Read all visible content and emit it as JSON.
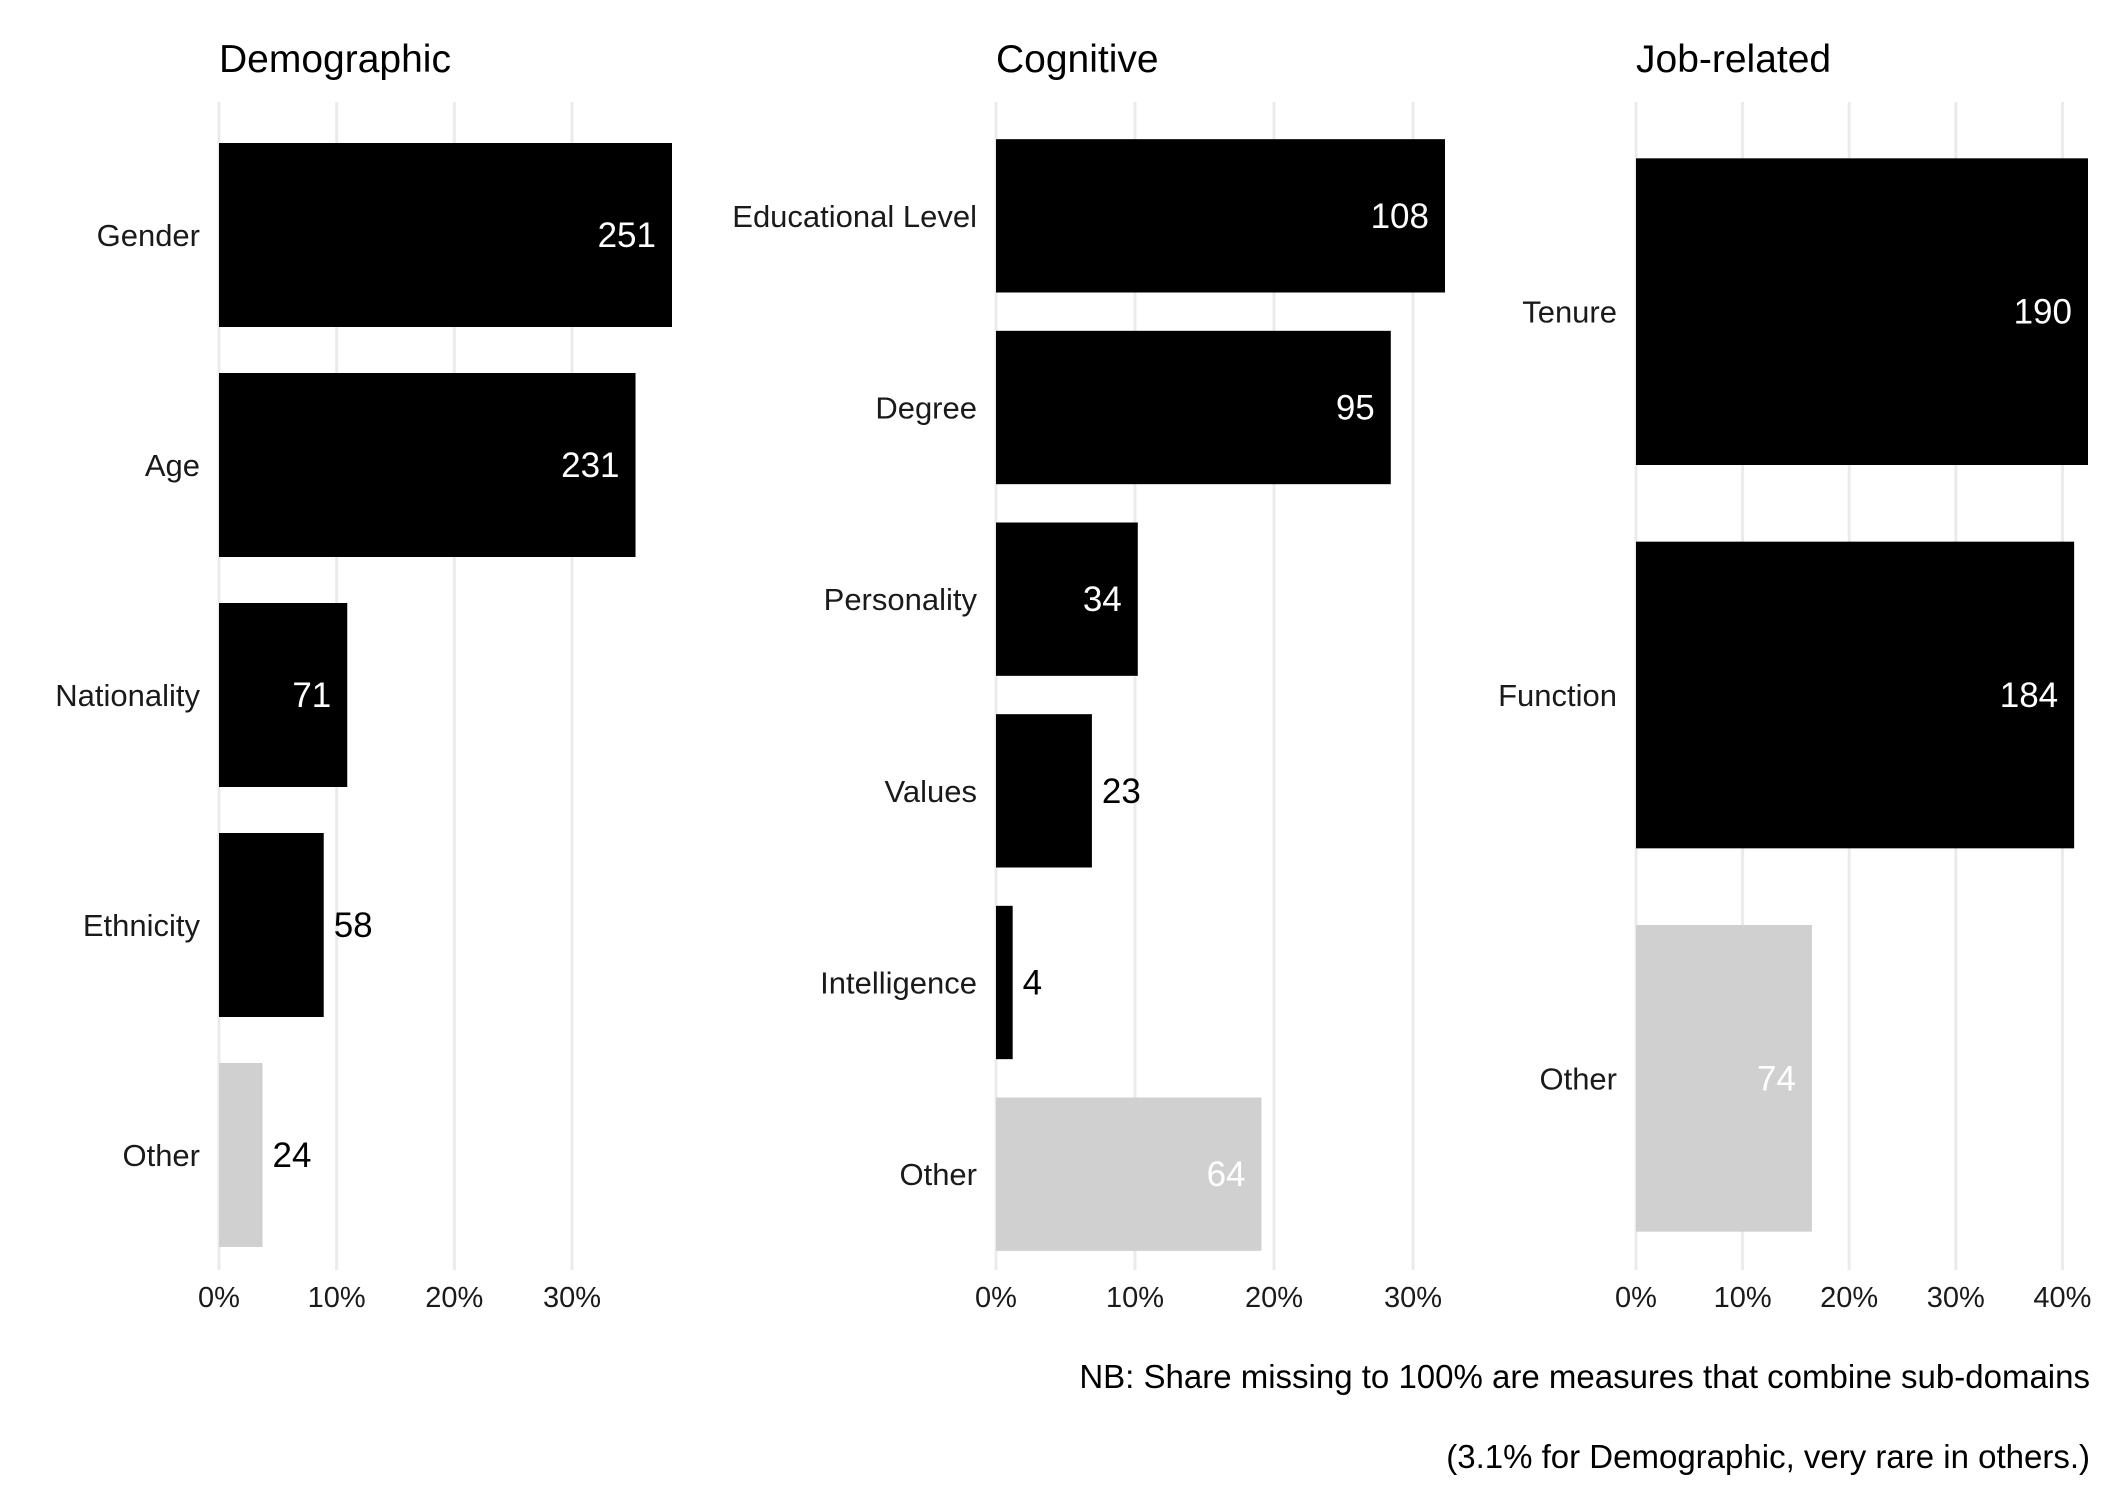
{
  "colors": {
    "main_bar": "#000000",
    "other_bar": "#d0d0d0",
    "grid": "#ebebeb",
    "label_inside": "#ffffff",
    "label_outside": "#000000"
  },
  "chart_data": [
    {
      "type": "bar",
      "orientation": "horizontal",
      "title": "Demographic",
      "xlabel": "",
      "ylabel": "",
      "xlim": [
        0,
        0.385
      ],
      "xticks": [
        0,
        0.1,
        0.2,
        0.3
      ],
      "xtick_labels": [
        "0%",
        "10%",
        "20%",
        "30%"
      ],
      "grid": true,
      "categories": [
        "Gender",
        "Age",
        "Nationality",
        "Ethnicity",
        "Other"
      ],
      "values": [
        0.385,
        0.354,
        0.109,
        0.089,
        0.037
      ],
      "counts": [
        "251",
        "231",
        "71",
        "58",
        "24"
      ],
      "highlight": [
        "main",
        "main",
        "main",
        "main",
        "other"
      ]
    },
    {
      "type": "bar",
      "orientation": "horizontal",
      "title": "Cognitive",
      "xlabel": "",
      "ylabel": "",
      "xlim": [
        0,
        0.323
      ],
      "xticks": [
        0,
        0.1,
        0.2,
        0.3
      ],
      "xtick_labels": [
        "0%",
        "10%",
        "20%",
        "30%"
      ],
      "grid": true,
      "categories": [
        "Educational Level",
        "Degree",
        "Personality",
        "Values",
        "Intelligence",
        "Other"
      ],
      "values": [
        0.323,
        0.284,
        0.102,
        0.069,
        0.012,
        0.191
      ],
      "counts": [
        "108",
        "95",
        "34",
        "23",
        "4",
        "64"
      ],
      "highlight": [
        "main",
        "main",
        "main",
        "main",
        "main",
        "other"
      ]
    },
    {
      "type": "bar",
      "orientation": "horizontal",
      "title": "Job-related",
      "xlabel": "",
      "ylabel": "",
      "xlim": [
        0,
        0.424
      ],
      "xticks": [
        0,
        0.1,
        0.2,
        0.3,
        0.4
      ],
      "xtick_labels": [
        "0%",
        "10%",
        "20%",
        "30%",
        "40%"
      ],
      "grid": true,
      "categories": [
        "Tenure",
        "Function",
        "Other"
      ],
      "values": [
        0.424,
        0.411,
        0.165
      ],
      "counts": [
        "190",
        "184",
        "74"
      ],
      "highlight": [
        "main",
        "main",
        "other"
      ]
    }
  ],
  "footnote": {
    "line1": "NB: Share missing to 100% are measures that combine sub-domains",
    "line2": "(3.1% for Demographic, very rare in others.)"
  }
}
